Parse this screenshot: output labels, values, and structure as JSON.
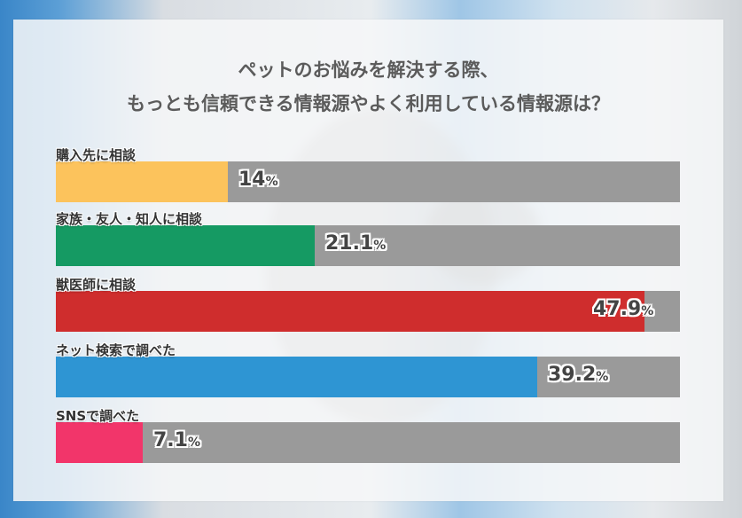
{
  "chart_data": {
    "type": "bar",
    "orientation": "horizontal",
    "title": "ペットのお悩みを解決する際、もっとも信頼できる情報源やよく利用している情報源は？",
    "title_lines": [
      "ペットのお悩みを解決する際、",
      "もっとも信頼できる情報源やよく利用している情報源は？"
    ],
    "categories": [
      "購入先に相談",
      "家族・友人・知人に相談",
      "獣医師に相談",
      "ネット検索で調べた",
      "SNSで調べた"
    ],
    "values": [
      14,
      21.1,
      47.9,
      39.2,
      7.1
    ],
    "value_labels": [
      "14",
      "21.1",
      "47.9",
      "39.2",
      "7.1"
    ],
    "unit": "%",
    "colors": [
      "#fcc35c",
      "#159a63",
      "#cf2d2d",
      "#2e95d3",
      "#f2356a"
    ],
    "track_color": "#9a9a9a",
    "xlim": [
      0,
      50
    ],
    "grid": false,
    "legend": "none"
  }
}
